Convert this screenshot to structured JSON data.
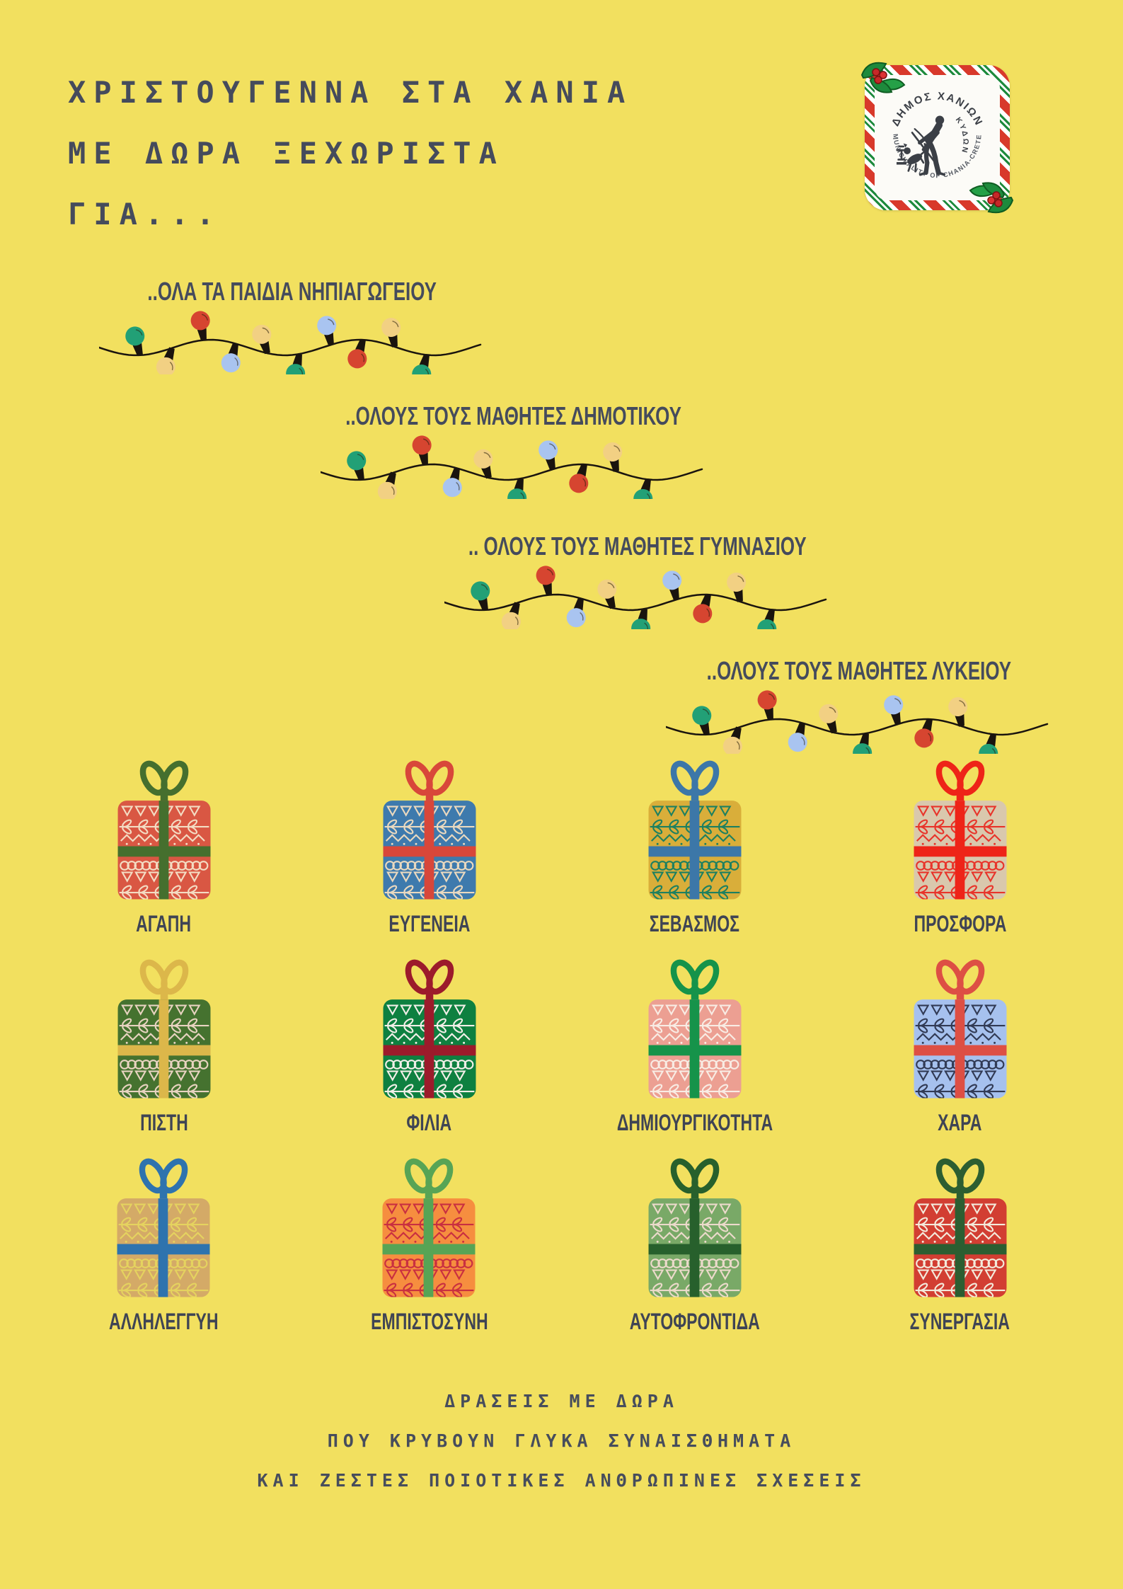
{
  "title": {
    "line1": "ΧΡΙΣΤΟΥΓΕΝΝΑ ΣΤΑ ΧΑΝΙΑ",
    "line2": "ΜΕ ΔΩΡΑ ΞΕΧΩΡΙΣΤΑ",
    "line3": "ΓΙΑ..."
  },
  "logo": {
    "ring_top_text": "ΔΗΜΟΣ ΧΑΝΙΩΝ",
    "ring_side_text": "ΚΥΔΩΝ",
    "ring_bottom_text": "MUNICIPALITY OF CHANIA-CRETE",
    "separator_dot": "·",
    "stripe_red": "#D8392B",
    "stripe_green": "#1D8A3C",
    "figure_color": "#3B3F46"
  },
  "audiences": [
    {
      "label": "..ΟΛΑ ΤΑ ΠΑΙΔΙΑ ΝΗΠΙΑΓΩΓΕΙΟΥ"
    },
    {
      "label": "..ΟΛΟΥΣ ΤΟΥΣ ΜΑΘΗΤΕΣ ΔΗΜΟΤΙΚΟΥ"
    },
    {
      "label": ".. ΟΛΟΥΣ ΤΟΥΣ ΜΑΘΗΤΕΣ ΓΥΜΝΑΣΙΟΥ"
    },
    {
      "label": "..ΟΛΟΥΣ ΤΟΥΣ ΜΑΘΗΤΕΣ ΛΥΚΕΙΟΥ"
    }
  ],
  "light_string": {
    "wire_color": "#1A140E",
    "bulb_colors": [
      "#22A076",
      "#F2D083",
      "#D64530",
      "#A9C4F0",
      "#F2D083",
      "#22A076",
      "#A9C4F0",
      "#D64530",
      "#F2D083",
      "#22A076"
    ]
  },
  "gifts": [
    {
      "label": "ΑΓΑΠΗ",
      "box": "#D95743",
      "ribbon": "#456F2E",
      "pattern": "#F3DCC3"
    },
    {
      "label": "ΕΥΓΕΝΕΙΑ",
      "box": "#3E7AAD",
      "ribbon": "#D8473A",
      "pattern": "#EAD9BF"
    },
    {
      "label": "ΣΕΒΑΣΜΟΣ",
      "box": "#D9AE3A",
      "ribbon": "#3C77A8",
      "pattern": "#1D8060"
    },
    {
      "label": "ΠΡΟΣΦΟΡΑ",
      "box": "#D9C8AD",
      "ribbon": "#EE2418",
      "pattern": "#E8342A"
    },
    {
      "label": "ΠΙΣΤΗ",
      "box": "#45722F",
      "ribbon": "#DCB74A",
      "pattern": "#E8D3C0"
    },
    {
      "label": "ΦΙΛΙΑ",
      "box": "#0E8040",
      "ribbon": "#9C1B2B",
      "pattern": "#F2EFE8"
    },
    {
      "label": "ΔΗΜΙΟΥΡΓΙΚΟΤΗΤΑ",
      "box": "#EC9F92",
      "ribbon": "#16934A",
      "pattern": "#F8ECE4"
    },
    {
      "label": "ΧΑΡΑ",
      "box": "#A6C1EE",
      "ribbon": "#DD4F44",
      "pattern": "#313A54"
    },
    {
      "label": "ΑΛΛΗΛΕΓΓΥΗ",
      "box": "#D4AA67",
      "ribbon": "#2E73AE",
      "pattern": "#E5D35F"
    },
    {
      "label": "ΕΜΠΙΣΤΟΣΥΝΗ",
      "box": "#F68E3F",
      "ribbon": "#57A455",
      "pattern": "#C92F40"
    },
    {
      "label": "ΑΥΤΟΦΡΟΝΤΙΔΑ",
      "box": "#79A967",
      "ribbon": "#27602C",
      "pattern": "#ECDACB"
    },
    {
      "label": "ΣΥΝΕΡΓΑΣΙΑ",
      "box": "#D23E32",
      "ribbon": "#2C5E31",
      "pattern": "#F3EBDC"
    }
  ],
  "footer": {
    "line1": "ΔΡΑΣΕΙΣ ΜΕ ΔΩΡΑ",
    "line2": "ΠΟΥ ΚΡΥΒΟΥΝ ΓΛΥΚΑ ΣΥΝΑΙΣΘΗΜΑΤΑ",
    "line3": "ΚΑΙ ΖΕΣΤΕΣ ΠΟΙΟΤΙΚΕΣ ΑΝΘΡΩΠΙΝΕΣ ΣΧΕΣΕΙΣ"
  },
  "colors": {
    "background": "#F2E05F",
    "text": "#454B5C"
  }
}
